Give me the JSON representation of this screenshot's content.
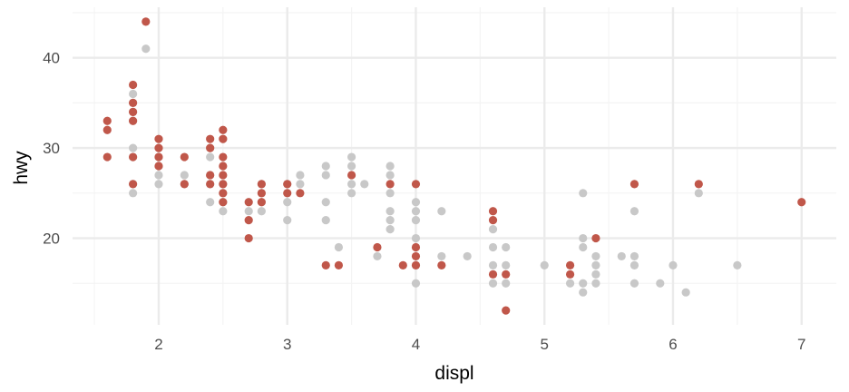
{
  "chart_data": {
    "type": "scatter",
    "xlabel": "displ",
    "ylabel": "hwy",
    "xlim": [
      1.33,
      7.27
    ],
    "ylim": [
      10.4,
      45.6
    ],
    "x_major_ticks": [
      2,
      3,
      4,
      5,
      6,
      7
    ],
    "y_major_ticks": [
      20,
      30,
      40
    ],
    "x_minor_ticks": [
      1.5,
      2.5,
      3.5,
      4.5,
      5.5,
      6.5
    ],
    "y_minor_ticks": [
      15,
      25,
      35,
      45
    ],
    "grid": true,
    "legend": "none",
    "series": [
      {
        "color": "#c8c8c8",
        "points": [
          [
            1.8,
            25
          ],
          [
            1.8,
            26
          ],
          [
            1.8,
            29
          ],
          [
            1.8,
            30
          ],
          [
            1.8,
            33
          ],
          [
            1.8,
            34
          ],
          [
            1.8,
            35
          ],
          [
            1.8,
            36
          ],
          [
            1.9,
            41
          ],
          [
            2.0,
            26
          ],
          [
            2.0,
            27
          ],
          [
            2.0,
            28
          ],
          [
            2.0,
            29
          ],
          [
            2.2,
            26
          ],
          [
            2.2,
            27
          ],
          [
            2.4,
            24
          ],
          [
            2.4,
            26
          ],
          [
            2.4,
            27
          ],
          [
            2.4,
            29
          ],
          [
            2.4,
            30
          ],
          [
            2.5,
            23
          ],
          [
            2.5,
            24
          ],
          [
            2.5,
            25
          ],
          [
            2.5,
            26
          ],
          [
            2.5,
            31
          ],
          [
            2.7,
            23
          ],
          [
            2.8,
            23
          ],
          [
            2.8,
            24
          ],
          [
            2.8,
            25
          ],
          [
            2.8,
            26
          ],
          [
            3.0,
            22
          ],
          [
            3.0,
            24
          ],
          [
            3.0,
            26
          ],
          [
            3.1,
            26
          ],
          [
            3.1,
            27
          ],
          [
            3.3,
            22
          ],
          [
            3.3,
            24
          ],
          [
            3.3,
            27
          ],
          [
            3.3,
            28
          ],
          [
            3.4,
            19
          ],
          [
            3.5,
            25
          ],
          [
            3.5,
            26
          ],
          [
            3.5,
            28
          ],
          [
            3.5,
            29
          ],
          [
            3.6,
            26
          ],
          [
            3.7,
            18
          ],
          [
            3.8,
            21
          ],
          [
            3.8,
            22
          ],
          [
            3.8,
            23
          ],
          [
            3.8,
            25
          ],
          [
            3.8,
            27
          ],
          [
            3.8,
            28
          ],
          [
            4.0,
            15
          ],
          [
            4.0,
            17
          ],
          [
            4.0,
            20
          ],
          [
            4.0,
            22
          ],
          [
            4.0,
            23
          ],
          [
            4.0,
            24
          ],
          [
            4.2,
            18
          ],
          [
            4.2,
            23
          ],
          [
            4.4,
            18
          ],
          [
            4.6,
            15
          ],
          [
            4.6,
            17
          ],
          [
            4.6,
            19
          ],
          [
            4.6,
            21
          ],
          [
            4.7,
            15
          ],
          [
            4.7,
            17
          ],
          [
            4.7,
            19
          ],
          [
            5.0,
            17
          ],
          [
            5.2,
            15
          ],
          [
            5.3,
            14
          ],
          [
            5.3,
            15
          ],
          [
            5.3,
            19
          ],
          [
            5.3,
            20
          ],
          [
            5.3,
            25
          ],
          [
            5.4,
            15
          ],
          [
            5.4,
            16
          ],
          [
            5.4,
            17
          ],
          [
            5.4,
            18
          ],
          [
            5.6,
            18
          ],
          [
            5.7,
            15
          ],
          [
            5.7,
            17
          ],
          [
            5.7,
            18
          ],
          [
            5.7,
            23
          ],
          [
            5.9,
            15
          ],
          [
            6.0,
            17
          ],
          [
            6.1,
            14
          ],
          [
            6.2,
            25
          ],
          [
            6.5,
            17
          ]
        ]
      },
      {
        "color": "#c0574a",
        "points": [
          [
            1.6,
            29
          ],
          [
            1.6,
            32
          ],
          [
            1.6,
            33
          ],
          [
            1.8,
            26
          ],
          [
            1.8,
            29
          ],
          [
            1.8,
            33
          ],
          [
            1.8,
            34
          ],
          [
            1.8,
            35
          ],
          [
            1.8,
            37
          ],
          [
            1.9,
            44
          ],
          [
            2.0,
            28
          ],
          [
            2.0,
            29
          ],
          [
            2.0,
            30
          ],
          [
            2.0,
            31
          ],
          [
            2.2,
            26
          ],
          [
            2.2,
            29
          ],
          [
            2.4,
            26
          ],
          [
            2.4,
            27
          ],
          [
            2.4,
            30
          ],
          [
            2.4,
            31
          ],
          [
            2.5,
            24
          ],
          [
            2.5,
            25
          ],
          [
            2.5,
            26
          ],
          [
            2.5,
            27
          ],
          [
            2.5,
            28
          ],
          [
            2.5,
            29
          ],
          [
            2.5,
            31
          ],
          [
            2.5,
            32
          ],
          [
            2.7,
            20
          ],
          [
            2.7,
            22
          ],
          [
            2.7,
            24
          ],
          [
            2.8,
            24
          ],
          [
            2.8,
            25
          ],
          [
            2.8,
            26
          ],
          [
            3.0,
            25
          ],
          [
            3.0,
            26
          ],
          [
            3.1,
            25
          ],
          [
            3.3,
            17
          ],
          [
            3.4,
            17
          ],
          [
            3.5,
            27
          ],
          [
            3.7,
            19
          ],
          [
            3.8,
            26
          ],
          [
            3.9,
            17
          ],
          [
            4.0,
            17
          ],
          [
            4.0,
            18
          ],
          [
            4.0,
            19
          ],
          [
            4.0,
            26
          ],
          [
            4.2,
            17
          ],
          [
            4.6,
            16
          ],
          [
            4.6,
            22
          ],
          [
            4.6,
            23
          ],
          [
            4.7,
            12
          ],
          [
            4.7,
            16
          ],
          [
            5.2,
            16
          ],
          [
            5.2,
            17
          ],
          [
            5.4,
            20
          ],
          [
            5.7,
            26
          ],
          [
            6.2,
            26
          ],
          [
            7.0,
            24
          ]
        ]
      }
    ]
  },
  "colors": {
    "background": "#ffffff",
    "grid_major": "#ebebeb",
    "grid_minor": "#f4f4f4",
    "tick_text": "#4d4d4d",
    "axis_title": "#000000"
  }
}
